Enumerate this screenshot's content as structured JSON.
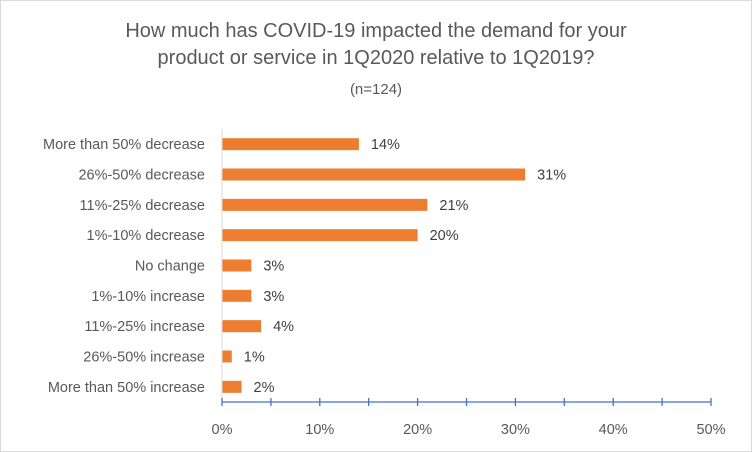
{
  "chart_data": {
    "type": "bar",
    "orientation": "horizontal",
    "title_line1": "How much has COVID-19 impacted the demand for your",
    "title_line2": "product or service in 1Q2020 relative to 1Q2019?",
    "subtitle": "(n=124)",
    "categories": [
      "More than 50% decrease",
      "26%-50% decrease",
      "11%-25% decrease",
      "1%-10% decrease",
      "No change",
      "1%-10% increase",
      "11%-25% increase",
      "26%-50% increase",
      "More than 50% increase"
    ],
    "values": [
      14,
      31,
      21,
      20,
      3,
      3,
      4,
      1,
      2
    ],
    "data_labels": [
      "14%",
      "31%",
      "21%",
      "20%",
      "3%",
      "3%",
      "4%",
      "1%",
      "2%"
    ],
    "xlim": [
      0,
      50
    ],
    "x_ticks": [
      0,
      10,
      20,
      30,
      40,
      50
    ],
    "x_tick_labels": [
      "0%",
      "10%",
      "20%",
      "30%",
      "40%",
      "50%"
    ],
    "grid": false,
    "legend": "none",
    "colors": {
      "bar": "#ED7D31",
      "axis": "#4472C4",
      "text": "#595959",
      "frame": "#D9D9D9"
    }
  }
}
